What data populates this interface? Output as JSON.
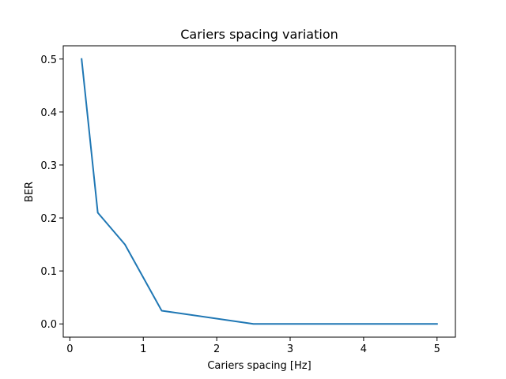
{
  "chart_data": {
    "type": "line",
    "title": "Cariers spacing variation",
    "xlabel": "Cariers spacing [Hz]",
    "ylabel": "BER",
    "xlim": [
      -0.09,
      5.25
    ],
    "ylim": [
      -0.025,
      0.525
    ],
    "xticks": [
      0,
      1,
      2,
      3,
      4,
      5
    ],
    "yticks": [
      0.0,
      0.1,
      0.2,
      0.3,
      0.4,
      0.5
    ],
    "xtick_labels": [
      "0",
      "1",
      "2",
      "3",
      "4",
      "5"
    ],
    "ytick_labels": [
      "0.0",
      "0.1",
      "0.2",
      "0.3",
      "0.4",
      "0.5"
    ],
    "grid": false,
    "series": [
      {
        "color": "#1f77b4",
        "x": [
          0.16,
          0.38,
          0.75,
          1.25,
          2.5,
          5.0
        ],
        "y": [
          0.5,
          0.21,
          0.15,
          0.025,
          0.0,
          0.0
        ]
      }
    ]
  }
}
